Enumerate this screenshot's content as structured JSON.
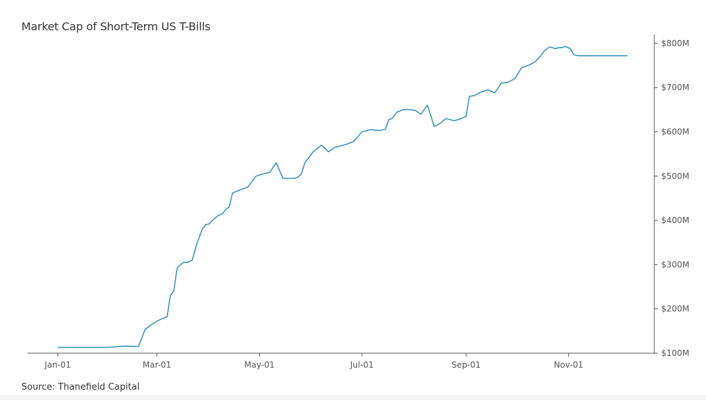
{
  "chart_data": {
    "type": "line",
    "title": "Market Cap of Short-Term US T-Bills",
    "source": "Source: Thanefield Capital",
    "xlabel": "",
    "ylabel": "",
    "x_tick_labels": [
      "Jan-01",
      "Mar-01",
      "May-01",
      "Jul-01",
      "Sep-01",
      "Nov-01"
    ],
    "x_tick_days": [
      0,
      59,
      120,
      181,
      243,
      304
    ],
    "y_tick_labels": [
      "$100M",
      "$200M",
      "$300M",
      "$400M",
      "$500M",
      "$600M",
      "$700M",
      "$800M"
    ],
    "y_tick_values": [
      100,
      200,
      300,
      400,
      500,
      600,
      700,
      800
    ],
    "ylim": [
      100,
      820
    ],
    "xlim": [
      -18,
      355
    ],
    "y_unit": "M USD",
    "y_axis_position": "right",
    "grid": false,
    "legend": "none",
    "line_color": "#3a93b8",
    "series": [
      {
        "x": [
          0,
          5,
          10,
          20,
          30,
          40,
          48,
          52,
          56,
          59,
          62,
          65,
          67,
          69,
          71,
          73,
          75,
          77,
          80,
          83,
          86,
          88,
          90,
          92,
          95,
          98,
          100,
          102,
          104,
          106,
          108,
          110,
          113,
          116,
          118,
          122,
          126,
          130,
          134,
          138,
          141,
          143,
          145,
          147,
          152,
          157,
          161,
          165,
          168,
          172,
          176,
          181,
          186,
          191,
          193,
          195,
          197,
          199,
          202,
          206,
          210,
          213,
          216,
          220,
          224,
          228,
          231,
          233,
          236,
          240,
          243,
          245,
          248,
          252,
          256,
          260,
          264,
          268,
          272,
          276,
          280,
          284,
          287,
          290,
          293,
          296,
          298,
          300,
          302,
          305,
          307,
          308,
          310,
          312,
          315,
          318,
          320,
          322,
          325,
          328,
          330,
          332,
          334,
          336,
          338,
          339
        ],
        "y": [
          113,
          113,
          113,
          113,
          113,
          116,
          115,
          154,
          165,
          172,
          178,
          182,
          230,
          240,
          292,
          300,
          305,
          305,
          310,
          350,
          380,
          390,
          392,
          400,
          410,
          415,
          425,
          430,
          462,
          465,
          468,
          471,
          475,
          490,
          500,
          505,
          508,
          530,
          495,
          495,
          495,
          498,
          505,
          530,
          555,
          570,
          555,
          565,
          568,
          572,
          578,
          600,
          605,
          603,
          604,
          606,
          628,
          630,
          645,
          650,
          650,
          648,
          640,
          660,
          612,
          620,
          630,
          628,
          625,
          630,
          635,
          680,
          682,
          690,
          695,
          688,
          710,
          712,
          720,
          745,
          750,
          758,
          770,
          785,
          792,
          788,
          790,
          790,
          793,
          788,
          775,
          773,
          772,
          772,
          772,
          772,
          772,
          772,
          772,
          772,
          772,
          772,
          772,
          772,
          772,
          772
        ]
      }
    ]
  }
}
